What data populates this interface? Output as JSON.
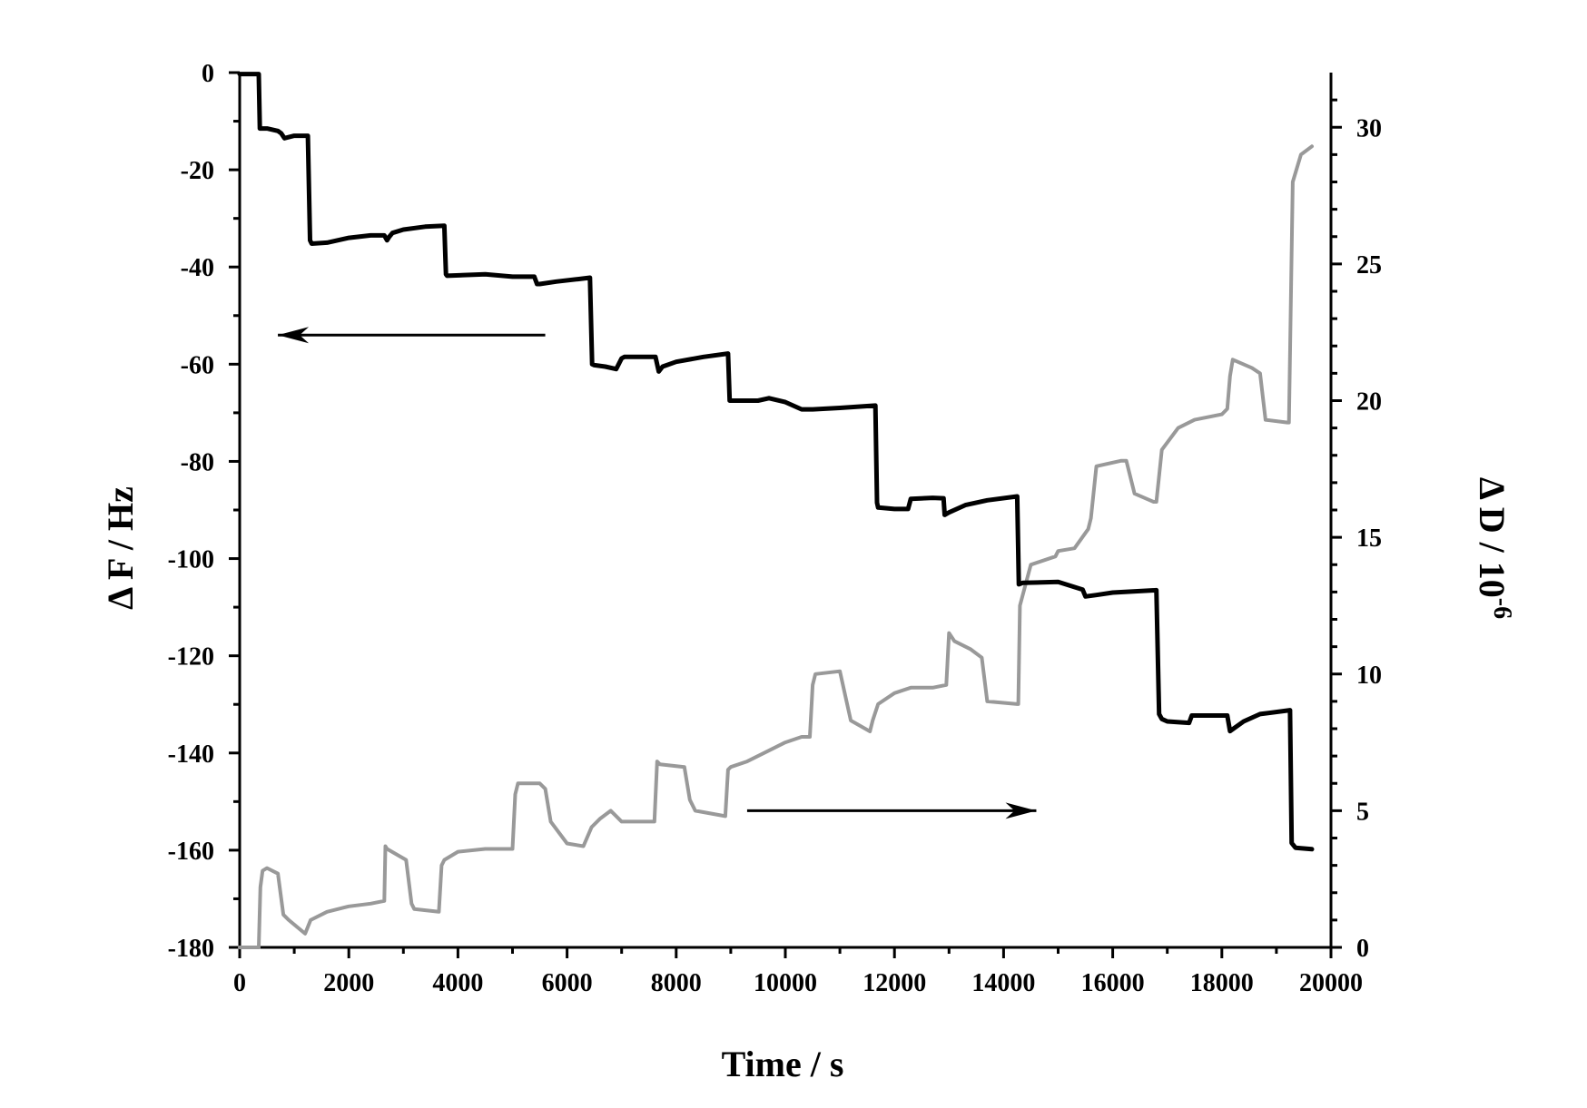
{
  "chart_data": {
    "type": "line",
    "title": "",
    "xlabel": "Time / s",
    "ylabel_left": "Δ F / Hz",
    "ylabel_right_base": "Δ D / 10",
    "ylabel_right_exp": "-6",
    "xlim": [
      0,
      20000
    ],
    "ylim_left": [
      -180,
      0
    ],
    "ylim_right": [
      0,
      32
    ],
    "x_ticks": [
      "0",
      "2000",
      "4000",
      "6000",
      "8000",
      "10000",
      "12000",
      "14000",
      "16000",
      "18000",
      "20000"
    ],
    "y_left_ticks": [
      "0",
      "-20",
      "-40",
      "-60",
      "-80",
      "-100",
      "-120",
      "-140",
      "-160",
      "-180"
    ],
    "y_right_ticks": [
      "0",
      "5",
      "10",
      "15",
      "20",
      "25",
      "30"
    ],
    "grid": false,
    "legend": "none",
    "annotations": [
      {
        "type": "arrow",
        "direction": "left",
        "meaning": "ΔF series uses left axis",
        "from": [
          5600,
          -54
        ],
        "to": [
          700,
          -54
        ]
      },
      {
        "type": "arrow",
        "direction": "right",
        "meaning": "ΔD series uses right axis",
        "from": [
          9300,
          5
        ],
        "to": [
          14600,
          5
        ]
      }
    ],
    "series": [
      {
        "id": "frequency",
        "axis": "left",
        "color": "#000000",
        "x": [
          0,
          350,
          370,
          500,
          700,
          760,
          820,
          1000,
          1250,
          1290,
          1320,
          1600,
          2000,
          2400,
          2650,
          2700,
          2740,
          2800,
          3000,
          3400,
          3750,
          3780,
          3800,
          4500,
          5000,
          5400,
          5450,
          5500,
          5800,
          6200,
          6420,
          6460,
          6500,
          6700,
          6900,
          7000,
          7050,
          7500,
          7620,
          7680,
          7750,
          8000,
          8500,
          8950,
          8980,
          9000,
          9500,
          9700,
          10000,
          10300,
          10500,
          11000,
          11650,
          11680,
          11700,
          12000,
          12250,
          12300,
          12700,
          12900,
          12920,
          13000,
          13300,
          13700,
          14250,
          14280,
          14350,
          15000,
          15450,
          15500,
          15700,
          16000,
          16800,
          16850,
          16900,
          17000,
          17400,
          17450,
          17600,
          18000,
          18100,
          18150,
          18400,
          18700,
          19250,
          19280,
          19350,
          19650
        ],
        "y": [
          -0.3,
          -0.3,
          -11.5,
          -11.5,
          -12,
          -12.5,
          -13.5,
          -13,
          -13,
          -34.5,
          -35.2,
          -35,
          -34,
          -33.5,
          -33.5,
          -34.5,
          -33.8,
          -33,
          -32.3,
          -31.7,
          -31.5,
          -41.5,
          -41.8,
          -41.5,
          -42,
          -42,
          -43.5,
          -43.5,
          -43,
          -42.5,
          -42.2,
          -60,
          -60.2,
          -60.5,
          -61,
          -58.8,
          -58.5,
          -58.5,
          -58.5,
          -61.5,
          -60.5,
          -59.5,
          -58.5,
          -57.8,
          -67.5,
          -67.5,
          -67.5,
          -67,
          -67.8,
          -69.3,
          -69.3,
          -69,
          -68.5,
          -88.5,
          -89.5,
          -89.8,
          -89.8,
          -87.7,
          -87.5,
          -87.6,
          -91,
          -90.5,
          -89,
          -88,
          -87.2,
          -105.3,
          -105,
          -104.8,
          -106.4,
          -107.8,
          -107.5,
          -107,
          -106.5,
          -132,
          -133,
          -133.5,
          -133.8,
          -132.3,
          -132.3,
          -132.3,
          -132.3,
          -135.5,
          -133.5,
          -132,
          -131.2,
          -158.5,
          -159.5,
          -159.8
        ]
      },
      {
        "id": "dissipation",
        "axis": "right",
        "color": "#999999",
        "x": [
          0,
          350,
          380,
          420,
          500,
          700,
          800,
          900,
          1200,
          1300,
          1600,
          2000,
          2400,
          2650,
          2670,
          2700,
          3050,
          3150,
          3200,
          3650,
          3700,
          3750,
          4000,
          4500,
          5000,
          5050,
          5100,
          5500,
          5600,
          5700,
          6000,
          6300,
          6450,
          6600,
          6800,
          7000,
          7400,
          7600,
          7650,
          7700,
          8150,
          8250,
          8350,
          8900,
          8950,
          9000,
          9300,
          9700,
          10000,
          10300,
          10450,
          10500,
          10550,
          11000,
          11100,
          11200,
          11550,
          11600,
          11700,
          12000,
          12300,
          12450,
          12700,
          12950,
          13000,
          13100,
          13400,
          13600,
          13700,
          14250,
          14270,
          14300,
          14500,
          14950,
          15000,
          15300,
          15550,
          15600,
          15700,
          16150,
          16250,
          16400,
          16750,
          16800,
          16900,
          17200,
          17500,
          18000,
          18100,
          18150,
          18200,
          18550,
          18700,
          18800,
          19200,
          19230,
          19300,
          19450,
          19650
        ],
        "y": [
          0,
          0,
          2.2,
          2.8,
          2.9,
          2.7,
          1.2,
          1,
          0.5,
          1,
          1.3,
          1.5,
          1.6,
          1.7,
          3.7,
          3.6,
          3.2,
          1.6,
          1.4,
          1.3,
          3,
          3.2,
          3.5,
          3.6,
          3.6,
          5.6,
          6,
          6,
          5.8,
          4.6,
          3.8,
          3.7,
          4.4,
          4.7,
          5,
          4.6,
          4.6,
          4.6,
          6.8,
          6.7,
          6.6,
          5.4,
          5,
          4.8,
          6.5,
          6.6,
          6.8,
          7.2,
          7.5,
          7.7,
          7.7,
          9.6,
          10,
          10.1,
          9.2,
          8.3,
          7.9,
          8.3,
          8.9,
          9.3,
          9.5,
          9.5,
          9.5,
          9.6,
          11.5,
          11.2,
          10.9,
          10.6,
          9,
          8.9,
          8.9,
          12.5,
          14,
          14.3,
          14.5,
          14.6,
          15.3,
          15.7,
          17.6,
          17.8,
          17.8,
          16.6,
          16.3,
          16.3,
          18.2,
          19,
          19.3,
          19.5,
          19.7,
          20.9,
          21.5,
          21.2,
          21,
          19.3,
          19.2,
          19.2,
          28,
          29,
          29.3
        ]
      }
    ]
  }
}
